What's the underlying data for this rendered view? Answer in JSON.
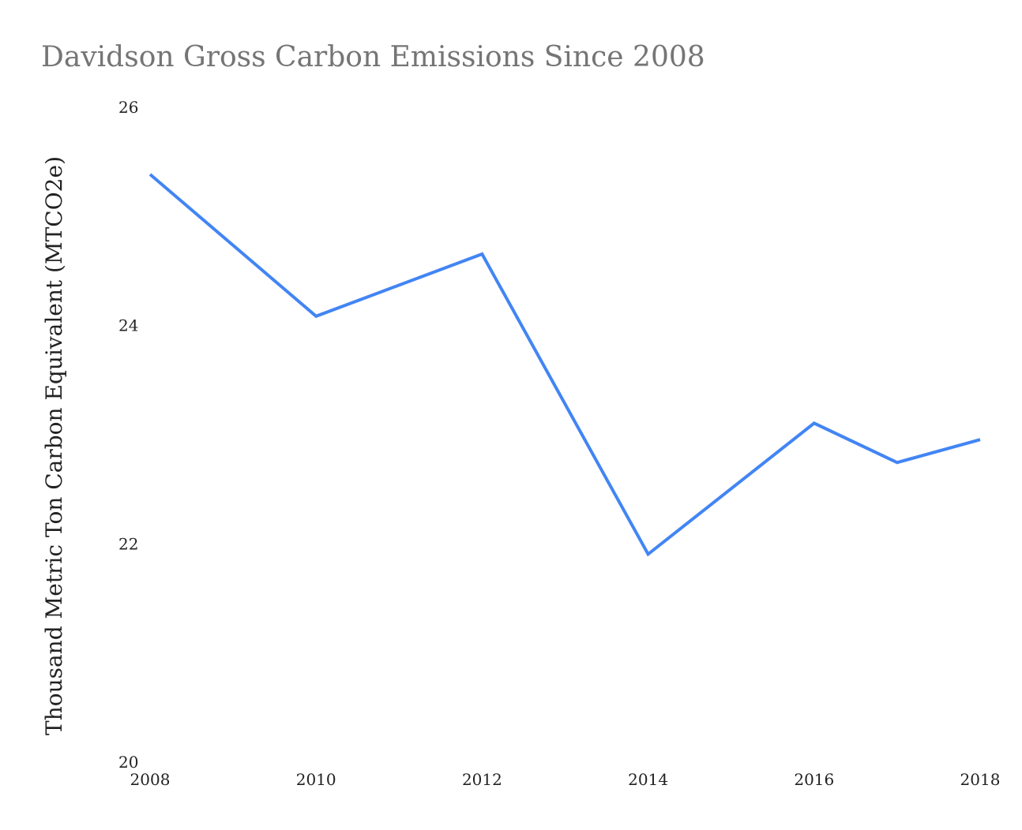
{
  "chart_data": {
    "type": "line",
    "title": "Davidson Gross Carbon Emissions Since 2008",
    "xlabel": "",
    "ylabel": "Thousand Metric Ton Carbon Equivalent (MTCO2e)",
    "x": [
      2008,
      2010,
      2012,
      2014,
      2016,
      2017,
      2018
    ],
    "series": [
      {
        "name": "Gross Carbon Emissions",
        "color": "#4285f4",
        "values": [
          25.4,
          24.1,
          24.67,
          21.92,
          23.12,
          22.76,
          22.97
        ]
      }
    ],
    "xlim": [
      2008,
      2018
    ],
    "ylim": [
      20,
      26
    ],
    "xticks": [
      "2008",
      "2010",
      "2012",
      "2014",
      "2016",
      "2018"
    ],
    "yticks": [
      "20",
      "22",
      "24",
      "26"
    ],
    "grid": false,
    "legend": "none"
  }
}
